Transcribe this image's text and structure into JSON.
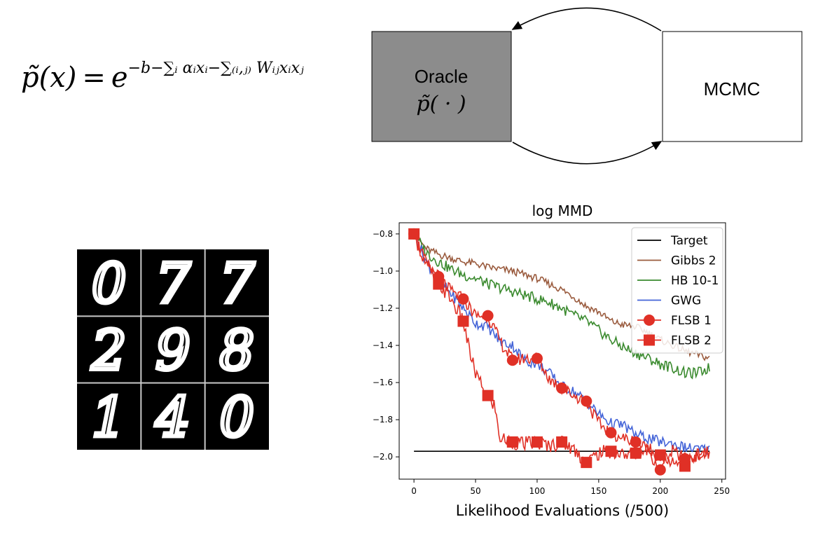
{
  "formula": {
    "lhs": "p̃(x)",
    "eq": "=",
    "base": "e",
    "exponent": "−b−∑ᵢ αᵢxᵢ−∑₍ᵢ,ⱼ₎ Wᵢⱼxᵢxⱼ"
  },
  "diagram": {
    "oracle_label": "Oracle",
    "oracle_sub": "p̃( · )",
    "mcmc_label": "MCMC",
    "colors": {
      "oracle_fill": "#8c8c8c",
      "mcmc_fill": "#ffffff"
    }
  },
  "digits": {
    "grid": [
      [
        "0",
        "7",
        "7"
      ],
      [
        "2",
        "9",
        "8"
      ],
      [
        "1",
        "4",
        "0"
      ]
    ],
    "background": "#000000",
    "stroke": "#ffffff"
  },
  "chart_data": {
    "type": "line",
    "title": "log MMD",
    "xlabel": "Likelihood Evaluations (/500)",
    "ylabel": "",
    "xlim": [
      -12,
      253
    ],
    "ylim": [
      -2.12,
      -0.74
    ],
    "xticks": [
      0,
      50,
      100,
      150,
      200,
      250
    ],
    "yticks": [
      -0.8,
      -1.0,
      -1.2,
      -1.4,
      -1.6,
      -1.8,
      -2.0
    ],
    "legend": "top-right",
    "grid": false,
    "series": [
      {
        "name": "Target",
        "color": "#000000",
        "marker": "none",
        "x": [
          0,
          240
        ],
        "y": [
          -1.97,
          -1.97
        ]
      },
      {
        "name": "Gibbs 2",
        "color": "#9a5b3e",
        "marker": "none",
        "x": [
          0,
          10,
          20,
          30,
          40,
          50,
          60,
          70,
          80,
          90,
          100,
          110,
          120,
          130,
          140,
          150,
          160,
          170,
          180,
          190,
          200,
          210,
          220,
          230,
          240
        ],
        "y": [
          -0.8,
          -0.88,
          -0.91,
          -0.93,
          -0.95,
          -0.96,
          -0.98,
          -0.99,
          -1.0,
          -1.02,
          -1.04,
          -1.07,
          -1.1,
          -1.14,
          -1.19,
          -1.22,
          -1.27,
          -1.29,
          -1.3,
          -1.33,
          -1.37,
          -1.4,
          -1.43,
          -1.45,
          -1.47
        ]
      },
      {
        "name": "HB 10-1",
        "color": "#3a8a2e",
        "marker": "none",
        "x": [
          0,
          10,
          20,
          30,
          40,
          50,
          60,
          70,
          80,
          90,
          100,
          110,
          120,
          130,
          140,
          150,
          160,
          170,
          180,
          190,
          200,
          210,
          220,
          230,
          240
        ],
        "y": [
          -0.8,
          -0.9,
          -0.95,
          -0.99,
          -1.02,
          -1.04,
          -1.07,
          -1.09,
          -1.11,
          -1.13,
          -1.15,
          -1.17,
          -1.2,
          -1.24,
          -1.27,
          -1.32,
          -1.37,
          -1.41,
          -1.44,
          -1.47,
          -1.5,
          -1.52,
          -1.55,
          -1.55,
          -1.52
        ]
      },
      {
        "name": "GWG",
        "color": "#4565d8",
        "marker": "none",
        "x": [
          0,
          10,
          20,
          30,
          40,
          50,
          60,
          70,
          80,
          90,
          100,
          110,
          120,
          130,
          140,
          150,
          160,
          170,
          180,
          190,
          200,
          210,
          220,
          230,
          240
        ],
        "y": [
          -0.8,
          -0.95,
          -1.05,
          -1.12,
          -1.2,
          -1.28,
          -1.3,
          -1.38,
          -1.4,
          -1.48,
          -1.5,
          -1.55,
          -1.62,
          -1.65,
          -1.7,
          -1.77,
          -1.82,
          -1.83,
          -1.88,
          -1.9,
          -1.92,
          -1.93,
          -1.95,
          -1.96,
          -1.96
        ]
      },
      {
        "name": "FLSB 1",
        "color": "#e03026",
        "marker": "circle",
        "x": [
          0,
          10,
          20,
          30,
          40,
          50,
          60,
          70,
          80,
          90,
          100,
          110,
          120,
          130,
          140,
          150,
          160,
          170,
          180,
          190,
          200,
          210,
          220,
          230,
          240
        ],
        "y": [
          -0.8,
          -0.96,
          -1.03,
          -1.11,
          -1.15,
          -1.24,
          -1.24,
          -1.38,
          -1.48,
          -1.47,
          -1.47,
          -1.58,
          -1.63,
          -1.67,
          -1.7,
          -1.82,
          -1.87,
          -1.9,
          -1.92,
          -1.96,
          -2.07,
          -1.97,
          -2.01,
          -1.99,
          -1.98
        ],
        "markers_at": [
          0,
          20,
          40,
          60,
          80,
          100,
          120,
          140,
          160,
          180,
          200,
          220
        ]
      },
      {
        "name": "FLSB 2",
        "color": "#e03026",
        "marker": "square",
        "x": [
          0,
          10,
          20,
          30,
          40,
          45,
          50,
          55,
          60,
          65,
          70,
          80,
          90,
          100,
          110,
          120,
          130,
          140,
          150,
          160,
          170,
          180,
          190,
          200,
          210,
          220,
          230,
          240
        ],
        "y": [
          -0.8,
          -0.97,
          -1.07,
          -1.15,
          -1.27,
          -1.43,
          -1.55,
          -1.62,
          -1.67,
          -1.72,
          -1.9,
          -1.92,
          -1.93,
          -1.92,
          -1.94,
          -1.92,
          -1.96,
          -2.03,
          -1.98,
          -1.97,
          -1.99,
          -1.98,
          -1.96,
          -1.99,
          -2.02,
          -2.05,
          -2.0,
          -1.98
        ],
        "markers_at": [
          0,
          20,
          40,
          60,
          80,
          100,
          120,
          140,
          160,
          180,
          200,
          220
        ]
      }
    ]
  }
}
